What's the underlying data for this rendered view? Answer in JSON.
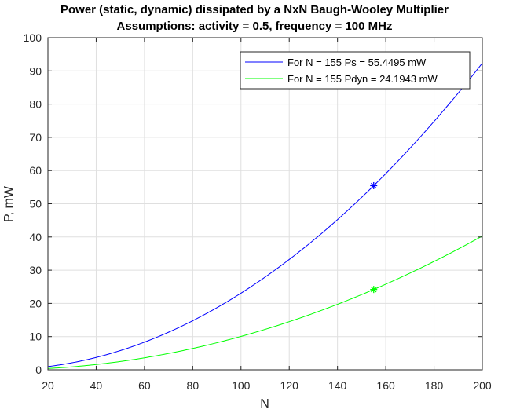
{
  "chart_data": {
    "type": "line",
    "title": "Power (static, dynamic) dissipated by a NxN Baugh-Wooley Multiplier",
    "subtitle": "Assumptions: activity = 0.5, frequency = 100 MHz",
    "xlabel": "N",
    "ylabel": "P, mW",
    "xlim": [
      20,
      200
    ],
    "ylim": [
      0,
      100
    ],
    "xticks": [
      20,
      40,
      60,
      80,
      100,
      120,
      140,
      160,
      180,
      200
    ],
    "yticks": [
      0,
      10,
      20,
      30,
      40,
      50,
      60,
      70,
      80,
      90,
      100
    ],
    "grid": true,
    "legend_position": "top-right",
    "series": [
      {
        "name": "For N = 155 Ps = 55.4495 mW",
        "color": "#0000ff",
        "x": [
          20,
          40,
          60,
          80,
          100,
          120,
          140,
          155,
          160,
          180,
          200
        ],
        "y": [
          1.0,
          3.7,
          8.3,
          14.8,
          23.1,
          33.2,
          45.2,
          55.4495,
          59.1,
          74.8,
          92.3
        ],
        "marker": {
          "x": 155,
          "y": 55.4495,
          "symbol": "asterisk"
        }
      },
      {
        "name": "For N = 155 Pdyn = 24.1943 mW",
        "color": "#00ff00",
        "x": [
          20,
          40,
          60,
          80,
          100,
          120,
          140,
          155,
          160,
          180,
          200
        ],
        "y": [
          0.4,
          1.6,
          3.6,
          6.4,
          10.1,
          14.5,
          19.7,
          24.1943,
          25.8,
          32.6,
          40.3
        ],
        "marker": {
          "x": 155,
          "y": 24.1943,
          "symbol": "asterisk"
        }
      }
    ]
  }
}
